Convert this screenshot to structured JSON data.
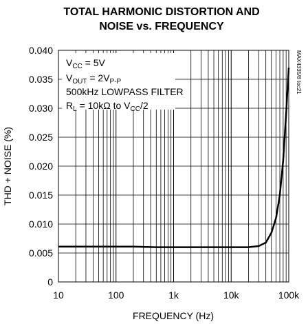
{
  "chart_data": {
    "type": "line",
    "title_line1": "TOTAL HARMONIC DISTORTION AND",
    "title_line2": "NOISE vs. FREQUENCY",
    "xlabel": "FREQUENCY (Hz)",
    "ylabel": "THD + NOISE (%)",
    "x_scale": "log",
    "xlim": [
      10,
      100000
    ],
    "ylim": [
      0,
      0.04
    ],
    "x_ticks": [
      {
        "value": 10,
        "label": "10"
      },
      {
        "value": 100,
        "label": "100"
      },
      {
        "value": 1000,
        "label": "1k"
      },
      {
        "value": 10000,
        "label": "10k"
      },
      {
        "value": 100000,
        "label": "100k"
      }
    ],
    "y_ticks": [
      {
        "value": 0,
        "label": "0"
      },
      {
        "value": 0.005,
        "label": "0.005"
      },
      {
        "value": 0.01,
        "label": "0.010"
      },
      {
        "value": 0.015,
        "label": "0.015"
      },
      {
        "value": 0.02,
        "label": "0.020"
      },
      {
        "value": 0.025,
        "label": "0.025"
      },
      {
        "value": 0.03,
        "label": "0.030"
      },
      {
        "value": 0.035,
        "label": "0.035"
      },
      {
        "value": 0.04,
        "label": "0.040"
      }
    ],
    "grid": true,
    "series": [
      {
        "x": [
          10,
          20,
          50,
          100,
          200,
          500,
          1000,
          2000,
          5000,
          10000,
          20000,
          30000,
          40000,
          50000,
          60000,
          70000,
          80000,
          90000,
          100000
        ],
        "y": [
          0.0061,
          0.0061,
          0.0061,
          0.0061,
          0.0061,
          0.006,
          0.006,
          0.006,
          0.006,
          0.006,
          0.006,
          0.0062,
          0.0068,
          0.0085,
          0.011,
          0.015,
          0.021,
          0.029,
          0.037
        ]
      }
    ],
    "annotations": {
      "line1": {
        "main": "V",
        "sub": "CC",
        "rest": " = 5V"
      },
      "line2": {
        "main": "V",
        "sub": "OUT",
        "rest": " = 2V",
        "sub2": "P-P"
      },
      "line3": "500kHz LOWPASS FILTER",
      "line4": {
        "main": "R",
        "sub": "L",
        "rest": " = 10kΩ to V",
        "sub2": "CC",
        "rest2": "/2"
      }
    },
    "side_label": "MAX4335/8 toc21"
  }
}
